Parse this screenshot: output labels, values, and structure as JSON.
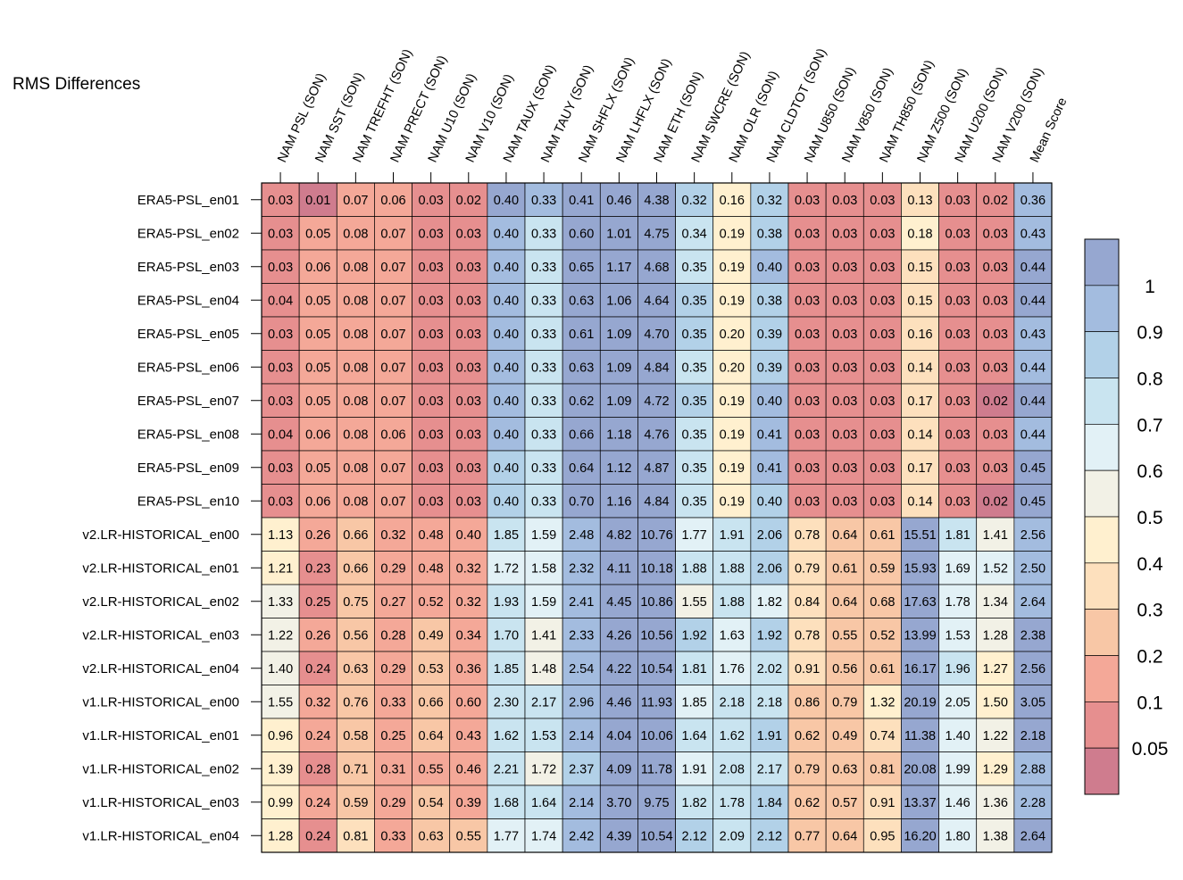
{
  "chart_data": {
    "type": "heatmap",
    "title": "RMS Differences",
    "columns": [
      "NAM PSL (SON)",
      "NAM SST (SON)",
      "NAM TREFHT (SON)",
      "NAM PRECT (SON)",
      "NAM U10 (SON)",
      "NAM V10 (SON)",
      "NAM TAUX (SON)",
      "NAM TAUY (SON)",
      "NAM SHFLX (SON)",
      "NAM LHFLX (SON)",
      "NAM ETH (SON)",
      "NAM SWCRE (SON)",
      "NAM OLR (SON)",
      "NAM CLDTOT (SON)",
      "NAM U850 (SON)",
      "NAM V850 (SON)",
      "NAM TH850 (SON)",
      "NAM Z500 (SON)",
      "NAM U200 (SON)",
      "NAM V200 (SON)",
      "Mean Score"
    ],
    "rows": [
      "ERA5-PSL_en01",
      "ERA5-PSL_en02",
      "ERA5-PSL_en03",
      "ERA5-PSL_en04",
      "ERA5-PSL_en05",
      "ERA5-PSL_en06",
      "ERA5-PSL_en07",
      "ERA5-PSL_en08",
      "ERA5-PSL_en09",
      "ERA5-PSL_en10",
      "v2.LR-HISTORICAL_en00",
      "v2.LR-HISTORICAL_en01",
      "v2.LR-HISTORICAL_en02",
      "v2.LR-HISTORICAL_en03",
      "v2.LR-HISTORICAL_en04",
      "v1.LR-HISTORICAL_en00",
      "v1.LR-HISTORICAL_en01",
      "v1.LR-HISTORICAL_en02",
      "v1.LR-HISTORICAL_en03",
      "v1.LR-HISTORICAL_en04"
    ],
    "values": [
      [
        "0.03",
        "0.01",
        "0.07",
        "0.06",
        "0.03",
        "0.02",
        "0.40",
        "0.33",
        "0.41",
        "0.46",
        "4.38",
        "0.32",
        "0.16",
        "0.32",
        "0.03",
        "0.03",
        "0.03",
        "0.13",
        "0.03",
        "0.02",
        "0.36"
      ],
      [
        "0.03",
        "0.05",
        "0.08",
        "0.07",
        "0.03",
        "0.03",
        "0.40",
        "0.33",
        "0.60",
        "1.01",
        "4.75",
        "0.34",
        "0.19",
        "0.38",
        "0.03",
        "0.03",
        "0.03",
        "0.18",
        "0.03",
        "0.03",
        "0.43"
      ],
      [
        "0.03",
        "0.06",
        "0.08",
        "0.07",
        "0.03",
        "0.03",
        "0.40",
        "0.33",
        "0.65",
        "1.17",
        "4.68",
        "0.35",
        "0.19",
        "0.40",
        "0.03",
        "0.03",
        "0.03",
        "0.15",
        "0.03",
        "0.03",
        "0.44"
      ],
      [
        "0.04",
        "0.05",
        "0.08",
        "0.07",
        "0.03",
        "0.03",
        "0.40",
        "0.33",
        "0.63",
        "1.06",
        "4.64",
        "0.35",
        "0.19",
        "0.38",
        "0.03",
        "0.03",
        "0.03",
        "0.15",
        "0.03",
        "0.03",
        "0.44"
      ],
      [
        "0.03",
        "0.05",
        "0.08",
        "0.07",
        "0.03",
        "0.03",
        "0.40",
        "0.33",
        "0.61",
        "1.09",
        "4.70",
        "0.35",
        "0.20",
        "0.39",
        "0.03",
        "0.03",
        "0.03",
        "0.16",
        "0.03",
        "0.03",
        "0.43"
      ],
      [
        "0.03",
        "0.05",
        "0.08",
        "0.07",
        "0.03",
        "0.03",
        "0.40",
        "0.33",
        "0.63",
        "1.09",
        "4.84",
        "0.35",
        "0.20",
        "0.39",
        "0.03",
        "0.03",
        "0.03",
        "0.14",
        "0.03",
        "0.03",
        "0.44"
      ],
      [
        "0.03",
        "0.05",
        "0.08",
        "0.07",
        "0.03",
        "0.03",
        "0.40",
        "0.33",
        "0.62",
        "1.09",
        "4.72",
        "0.35",
        "0.19",
        "0.40",
        "0.03",
        "0.03",
        "0.03",
        "0.17",
        "0.03",
        "0.02",
        "0.44"
      ],
      [
        "0.04",
        "0.06",
        "0.08",
        "0.06",
        "0.03",
        "0.03",
        "0.40",
        "0.33",
        "0.66",
        "1.18",
        "4.76",
        "0.35",
        "0.19",
        "0.41",
        "0.03",
        "0.03",
        "0.03",
        "0.14",
        "0.03",
        "0.03",
        "0.44"
      ],
      [
        "0.03",
        "0.05",
        "0.08",
        "0.07",
        "0.03",
        "0.03",
        "0.40",
        "0.33",
        "0.64",
        "1.12",
        "4.87",
        "0.35",
        "0.19",
        "0.41",
        "0.03",
        "0.03",
        "0.03",
        "0.17",
        "0.03",
        "0.03",
        "0.45"
      ],
      [
        "0.03",
        "0.06",
        "0.08",
        "0.07",
        "0.03",
        "0.03",
        "0.40",
        "0.33",
        "0.70",
        "1.16",
        "4.84",
        "0.35",
        "0.19",
        "0.40",
        "0.03",
        "0.03",
        "0.03",
        "0.14",
        "0.03",
        "0.02",
        "0.45"
      ],
      [
        "1.13",
        "0.26",
        "0.66",
        "0.32",
        "0.48",
        "0.40",
        "1.85",
        "1.59",
        "2.48",
        "4.82",
        "10.76",
        "1.77",
        "1.91",
        "2.06",
        "0.78",
        "0.64",
        "0.61",
        "15.51",
        "1.81",
        "1.41",
        "2.56"
      ],
      [
        "1.21",
        "0.23",
        "0.66",
        "0.29",
        "0.48",
        "0.32",
        "1.72",
        "1.58",
        "2.32",
        "4.11",
        "10.18",
        "1.88",
        "1.88",
        "2.06",
        "0.79",
        "0.61",
        "0.59",
        "15.93",
        "1.69",
        "1.52",
        "2.50"
      ],
      [
        "1.33",
        "0.25",
        "0.75",
        "0.27",
        "0.52",
        "0.32",
        "1.93",
        "1.59",
        "2.41",
        "4.45",
        "10.86",
        "1.55",
        "1.88",
        "1.82",
        "0.84",
        "0.64",
        "0.68",
        "17.63",
        "1.78",
        "1.34",
        "2.64"
      ],
      [
        "1.22",
        "0.26",
        "0.56",
        "0.28",
        "0.49",
        "0.34",
        "1.70",
        "1.41",
        "2.33",
        "4.26",
        "10.56",
        "1.92",
        "1.63",
        "1.92",
        "0.78",
        "0.55",
        "0.52",
        "13.99",
        "1.53",
        "1.28",
        "2.38"
      ],
      [
        "1.40",
        "0.24",
        "0.63",
        "0.29",
        "0.53",
        "0.36",
        "1.85",
        "1.48",
        "2.54",
        "4.22",
        "10.54",
        "1.81",
        "1.76",
        "2.02",
        "0.91",
        "0.56",
        "0.61",
        "16.17",
        "1.96",
        "1.27",
        "2.56"
      ],
      [
        "1.55",
        "0.32",
        "0.76",
        "0.33",
        "0.66",
        "0.60",
        "2.30",
        "2.17",
        "2.96",
        "4.46",
        "11.93",
        "1.85",
        "2.18",
        "2.18",
        "0.86",
        "0.79",
        "1.32",
        "20.19",
        "2.05",
        "1.50",
        "3.05"
      ],
      [
        "0.96",
        "0.24",
        "0.58",
        "0.25",
        "0.64",
        "0.43",
        "1.62",
        "1.53",
        "2.14",
        "4.04",
        "10.06",
        "1.64",
        "1.62",
        "1.91",
        "0.62",
        "0.49",
        "0.74",
        "11.38",
        "1.40",
        "1.22",
        "2.18"
      ],
      [
        "1.39",
        "0.28",
        "0.71",
        "0.31",
        "0.55",
        "0.46",
        "2.21",
        "1.72",
        "2.37",
        "4.09",
        "11.78",
        "1.91",
        "2.08",
        "2.17",
        "0.79",
        "0.63",
        "0.81",
        "20.08",
        "1.99",
        "1.29",
        "2.88"
      ],
      [
        "0.99",
        "0.24",
        "0.59",
        "0.29",
        "0.54",
        "0.39",
        "1.68",
        "1.64",
        "2.14",
        "3.70",
        "9.75",
        "1.82",
        "1.78",
        "1.84",
        "0.62",
        "0.57",
        "0.91",
        "13.37",
        "1.46",
        "1.36",
        "2.28"
      ],
      [
        "1.28",
        "0.24",
        "0.81",
        "0.33",
        "0.63",
        "0.55",
        "1.77",
        "1.74",
        "2.42",
        "4.39",
        "10.54",
        "2.12",
        "2.09",
        "2.12",
        "0.77",
        "0.64",
        "0.95",
        "16.20",
        "1.80",
        "1.38",
        "2.64"
      ]
    ],
    "colorbar": {
      "tick_labels": [
        "1",
        "0.9",
        "0.8",
        "0.7",
        "0.6",
        "0.5",
        "0.4",
        "0.3",
        "0.2",
        "0.1",
        "0.05"
      ],
      "bounds": [
        0.05,
        0.1,
        0.2,
        0.3,
        0.4,
        0.5,
        0.6,
        0.7,
        0.8,
        0.9,
        1
      ],
      "colors_low_to_high": [
        "#cf7c8e",
        "#e68f8f",
        "#f4a898",
        "#f8c7a6",
        "#fde0bd",
        "#fff0cf",
        "#f2f1e6",
        "#e2f1f6",
        "#c9e4f0",
        "#b2d1e8",
        "#a3bcdf",
        "#96a7d0"
      ]
    }
  }
}
